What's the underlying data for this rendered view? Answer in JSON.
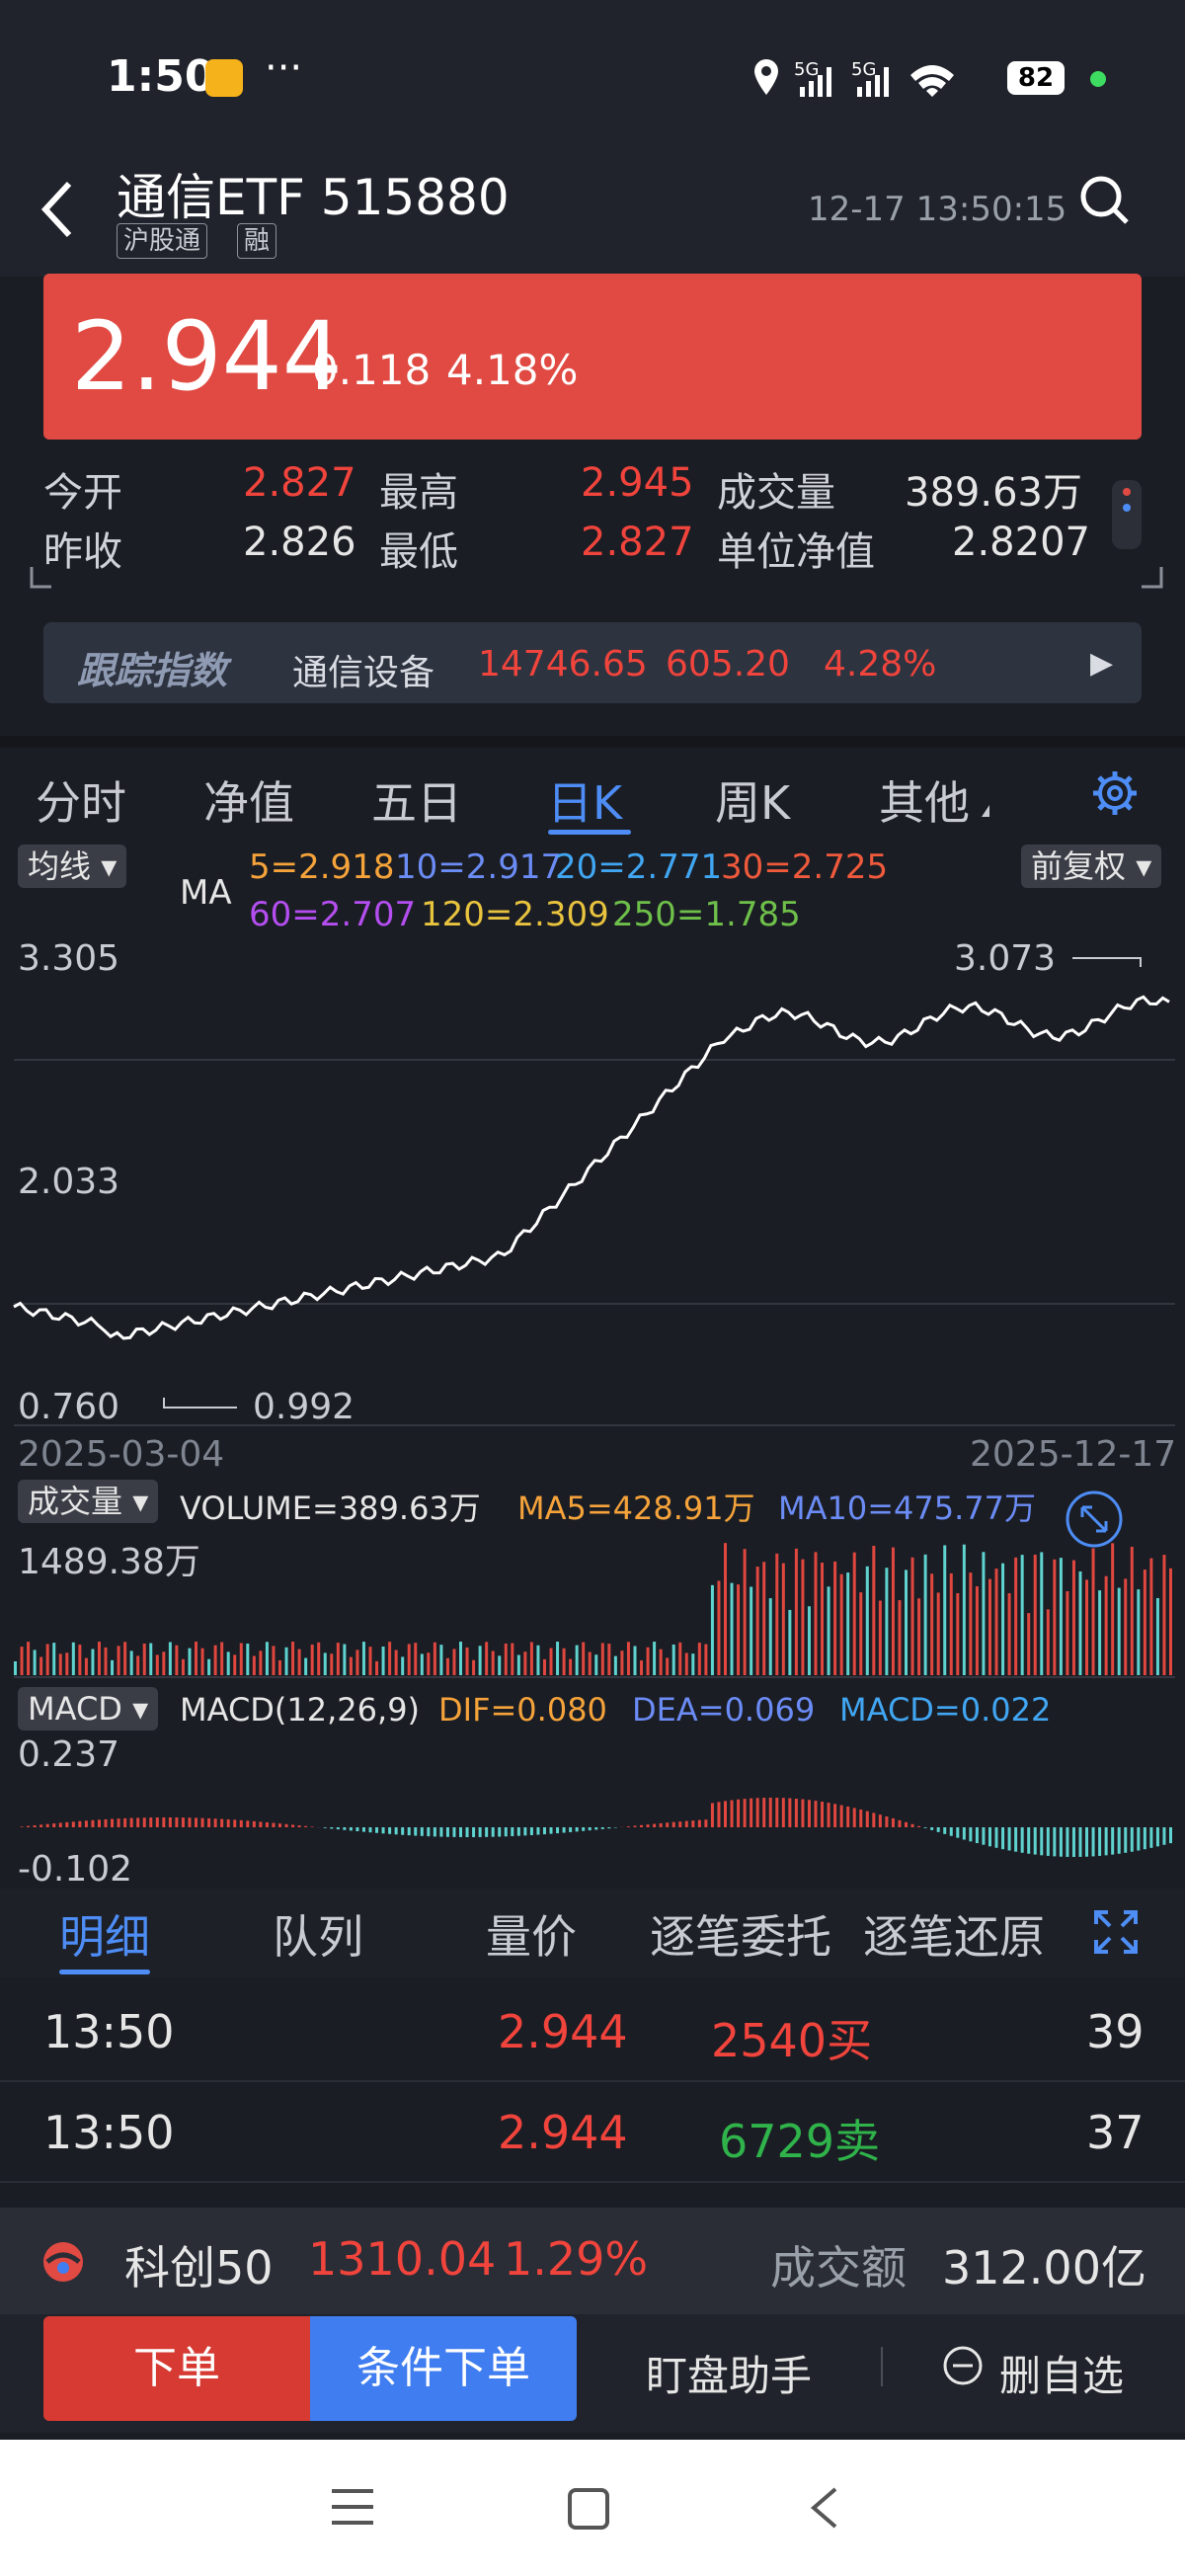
{
  "status": {
    "time": "1:50",
    "signal": "5G 5G",
    "battery": "82"
  },
  "header": {
    "title": "通信ETF 515880",
    "tags": [
      "沪股通",
      "融"
    ],
    "datetime": "12-17 13:50:15"
  },
  "price": {
    "last": "2.944",
    "change": "0.118",
    "pct": "4.18%"
  },
  "quote": {
    "open_label": "今开",
    "open": "2.827",
    "high_label": "最高",
    "high": "2.945",
    "vol_label": "成交量",
    "vol": "389.63万",
    "prev_label": "昨收",
    "prev": "2.826",
    "low_label": "最低",
    "low": "2.827",
    "nav_label": "单位净值",
    "nav": "2.8207"
  },
  "track": {
    "label": "跟踪指数",
    "name": "通信设备",
    "value": "14746.65",
    "change": "605.20",
    "pct": "4.28%"
  },
  "chart_tabs": [
    "分时",
    "净值",
    "五日",
    "日K",
    "周K",
    "其他"
  ],
  "chart_active": "日K",
  "kline": {
    "indicator_btn": "均线",
    "adjust_btn": "前复权",
    "ma_label": "MA",
    "ma": {
      "ma5": "5=2.918",
      "ma10": "10=2.917",
      "ma20": "20=2.771",
      "ma30": "30=2.725",
      "ma60": "60=2.707",
      "ma120": "120=2.309",
      "ma250": "250=1.785"
    },
    "y_top": "3.305",
    "y_mid": "2.033",
    "y_bottom": "0.760",
    "hi_mark": "3.073",
    "lo_mark": "0.992",
    "date_start": "2025-03-04",
    "date_end": "2025-12-17"
  },
  "volume": {
    "btn": "成交量",
    "vol": "VOLUME=389.63万",
    "ma5": "MA5=428.91万",
    "ma10": "MA10=475.77万",
    "max": "1489.38万"
  },
  "macd": {
    "btn": "MACD",
    "params": "MACD(12,26,9)",
    "dif": "DIF=0.080",
    "dea": "DEA=0.069",
    "macd": "MACD=0.022",
    "top": "0.237",
    "bottom": "-0.102"
  },
  "detail_tabs": [
    "明细",
    "队列",
    "量价",
    "逐笔委托",
    "逐笔还原"
  ],
  "trades": [
    {
      "time": "13:50",
      "price": "2.944",
      "qty": "2540买",
      "count": "39",
      "side": "buy"
    },
    {
      "time": "13:50",
      "price": "2.944",
      "qty": "6729卖",
      "count": "37",
      "side": "sell"
    }
  ],
  "index_bar": {
    "name": "科创50",
    "value": "1310.04",
    "pct": "1.29%",
    "turnover_label": "成交额",
    "turnover": "312.00亿"
  },
  "actions": {
    "order": "下单",
    "cond_order": "条件下单",
    "helper": "盯盘助手",
    "remove": "删自选"
  },
  "colors": {
    "up": "#f0443c",
    "down": "#2fb34a",
    "accent": "#4d8df5",
    "price_bg": "#e04a42"
  }
}
